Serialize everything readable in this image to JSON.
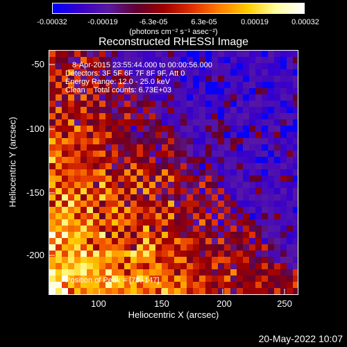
{
  "colorbar": {
    "ticks": [
      "-0.00032",
      "-0.00019",
      "-6.3e-05",
      "6.3e-05",
      "0.00019",
      "0.00032"
    ],
    "units": "(photons cm⁻² s⁻¹ asec⁻²)",
    "range": [
      -0.00032,
      0.00032
    ],
    "colormap": [
      "#0000ff",
      "#3a00c8",
      "#5a1aa0",
      "#600030",
      "#a00000",
      "#e03000",
      "#ff8000",
      "#ffcc00",
      "#ffffa0",
      "#ffffff"
    ]
  },
  "title": "Reconstructed RHESSI Image",
  "info": {
    "time_range": "8-Apr-2015 23:55:44.000 to 00:00:56.000",
    "detectors": "Detectors: 3F 5F 6F 7F 8F 9F, Att 0",
    "energy": "Energy Range: 12.0 - 25.0 keV",
    "algorithm": "Clean    Total counts: 6.73E+03",
    "peak": "Position of Peak = [78,-147]"
  },
  "axes": {
    "xlabel": "Heliocentric X (arcsec)",
    "ylabel": "Heliocentric Y (arcsec)",
    "xticks": [
      "100",
      "150",
      "200",
      "250"
    ],
    "yticks": [
      "-50",
      "-100",
      "-150",
      "-200"
    ],
    "xlim": [
      61,
      260
    ],
    "ylim": [
      -232,
      -36
    ]
  },
  "timestamp": "20-May-2022 10:07"
}
